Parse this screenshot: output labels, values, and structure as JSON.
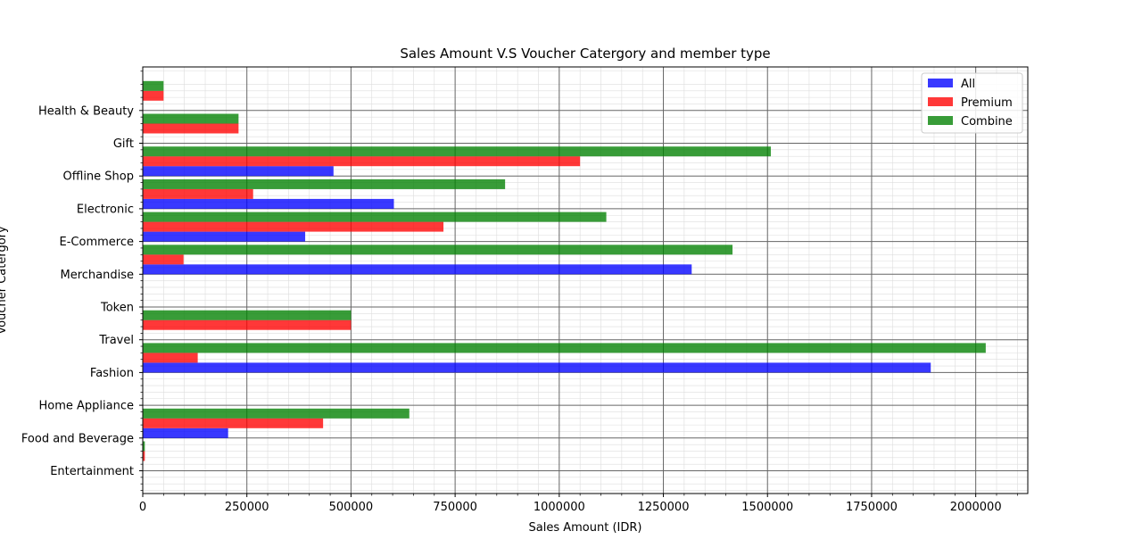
{
  "chart_data": {
    "type": "bar",
    "orientation": "horizontal",
    "title": "Sales Amount V.S Voucher Catergory and member type",
    "xlabel": "Sales Amount (IDR)",
    "ylabel": "Voucher Catergory",
    "xlim": [
      0,
      2125000
    ],
    "x_ticks": [
      0,
      250000,
      500000,
      750000,
      1000000,
      1250000,
      1500000,
      1750000,
      2000000
    ],
    "x_tick_labels": [
      "0",
      "250000",
      "500000",
      "750000",
      "1000000",
      "1250000",
      "1500000",
      "1750000",
      "2000000"
    ],
    "categories": [
      "Entertainment",
      "Food and Beverage",
      "Home Appliance",
      "Fashion",
      "Travel",
      "Token",
      "Merchandise",
      "E-Commerce",
      "Electronic",
      "Offline Shop",
      "Gift",
      "Health & Beauty"
    ],
    "series": [
      {
        "name": "All",
        "color": "#0000ff",
        "values": [
          0,
          205000,
          0,
          1892000,
          0,
          0,
          1318000,
          390000,
          603000,
          458000,
          0,
          0
        ]
      },
      {
        "name": "Premium",
        "color": "#ff0000",
        "values": [
          5000,
          433000,
          0,
          132000,
          500000,
          0,
          98000,
          722000,
          265000,
          1050000,
          230000,
          50000
        ]
      },
      {
        "name": "Combine",
        "color": "#008000",
        "values": [
          5000,
          640000,
          0,
          2024000,
          500000,
          0,
          1416000,
          1113000,
          870000,
          1508000,
          230000,
          50000
        ]
      }
    ],
    "grid": true,
    "legend_position": "top-right"
  }
}
